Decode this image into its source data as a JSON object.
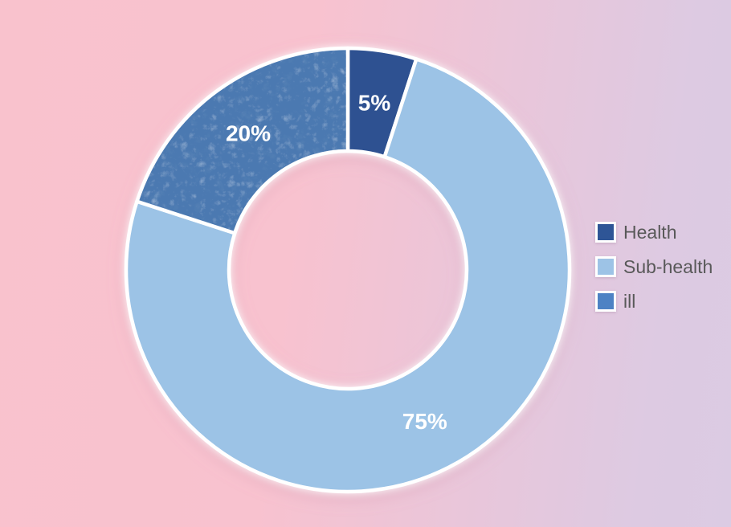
{
  "chart_data": {
    "type": "pie",
    "style": "donut",
    "title": "",
    "unit": "%",
    "direction": "clockwise",
    "start_angle_deg": 0,
    "center": {
      "x": 433,
      "y": 336
    },
    "outer_radius": 276,
    "inner_radius": 148,
    "label_radius": 211,
    "slice_border_color": "#ffffff",
    "slice_border_width": 4.5,
    "series": [
      {
        "name": "Health",
        "value": 5,
        "label": "5%",
        "color": "#2e5191",
        "textured": false
      },
      {
        "name": "Sub-health",
        "value": 75,
        "label": "75%",
        "color": "#9cc3e6",
        "textured": false
      },
      {
        "name": "ill",
        "value": 20,
        "label": "20%",
        "color": "#4c79b1",
        "textured": true
      }
    ],
    "legend": {
      "position": "right",
      "items": [
        {
          "label": "Health",
          "color": "#2e5596"
        },
        {
          "label": "Sub-health",
          "color": "#9dc3e6"
        },
        {
          "label": "ill",
          "color": "#4d82c4"
        }
      ]
    }
  },
  "background": {
    "gradient_left_pink": "#f9c2cd",
    "gradient_right_lavender": "#dbcbe3"
  }
}
